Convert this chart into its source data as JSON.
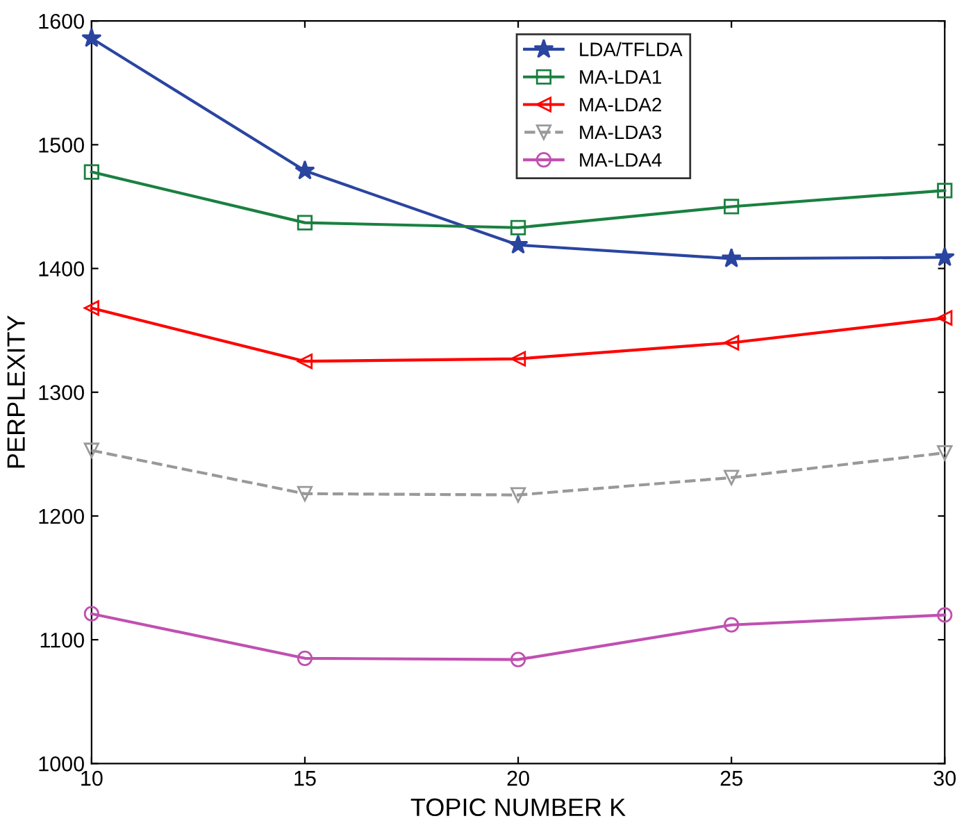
{
  "chart_data": {
    "type": "line",
    "xlabel": "TOPIC NUMBER K",
    "ylabel": "PERPLEXITY",
    "x": [
      10,
      15,
      20,
      25,
      30
    ],
    "xlim": [
      10,
      30
    ],
    "xticks": [
      10,
      15,
      20,
      25,
      30
    ],
    "ylim": [
      1000,
      1600
    ],
    "yticks": [
      1000,
      1100,
      1200,
      1300,
      1400,
      1500,
      1600
    ],
    "grid": false,
    "legend": "top",
    "series": [
      {
        "name": "LDA/TFLDA",
        "color": "#2a45a0",
        "marker": "star",
        "line_style": "solid",
        "values": [
          1586,
          1479,
          1419,
          1408,
          1409
        ]
      },
      {
        "name": "MA-LDA1",
        "color": "#1a8040",
        "marker": "square",
        "line_style": "solid",
        "values": [
          1478,
          1437,
          1433,
          1450,
          1463
        ]
      },
      {
        "name": "MA-LDA2",
        "color": "#ff0000",
        "marker": "triangle_left",
        "line_style": "solid",
        "values": [
          1368,
          1325,
          1327,
          1340,
          1360
        ]
      },
      {
        "name": "MA-LDA3",
        "color": "#999999",
        "marker": "triangle_down",
        "line_style": "dashed",
        "values": [
          1253,
          1218,
          1217,
          1231,
          1251
        ]
      },
      {
        "name": "MA-LDA4",
        "color": "#c050b0",
        "marker": "circle",
        "line_style": "solid",
        "values": [
          1121,
          1085,
          1084,
          1112,
          1120
        ]
      }
    ]
  }
}
